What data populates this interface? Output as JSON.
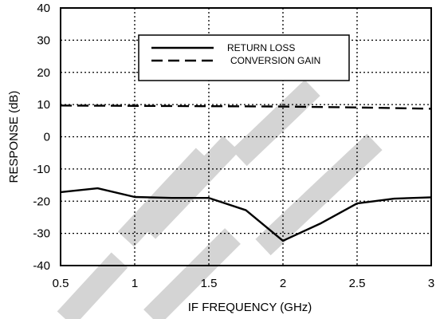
{
  "chart_data": {
    "type": "line",
    "xlabel": "IF FREQUENCY (GHz)",
    "ylabel": "RESPONSE (dB)",
    "xlim": [
      0.5,
      3
    ],
    "ylim": [
      -40,
      40
    ],
    "xticks": [
      "0.5",
      "1",
      "1.5",
      "2",
      "2.5",
      "3"
    ],
    "yticks": [
      "40",
      "30",
      "20",
      "10",
      "0",
      "-10",
      "-20",
      "-30",
      "-40"
    ],
    "grid": true,
    "legend_position": "top-right",
    "series": [
      {
        "name": "RETURN LOSS",
        "style": "solid",
        "x": [
          0.5,
          0.75,
          1.0,
          1.25,
          1.5,
          1.75,
          2.0,
          2.25,
          2.5,
          2.75,
          3.0
        ],
        "values": [
          -17.2,
          -16.0,
          -18.7,
          -19.0,
          -19.0,
          -22.8,
          -32.3,
          -27.0,
          -20.7,
          -19.2,
          -18.8
        ]
      },
      {
        "name": "CONVERSION GAIN",
        "style": "dashed",
        "x": [
          0.5,
          1.0,
          1.5,
          2.0,
          2.5,
          3.0
        ],
        "values": [
          9.7,
          9.6,
          9.5,
          9.4,
          9.1,
          8.7
        ]
      }
    ]
  },
  "watermark": {
    "text": "OBSOLETE",
    "color": "#d4d4d4"
  }
}
